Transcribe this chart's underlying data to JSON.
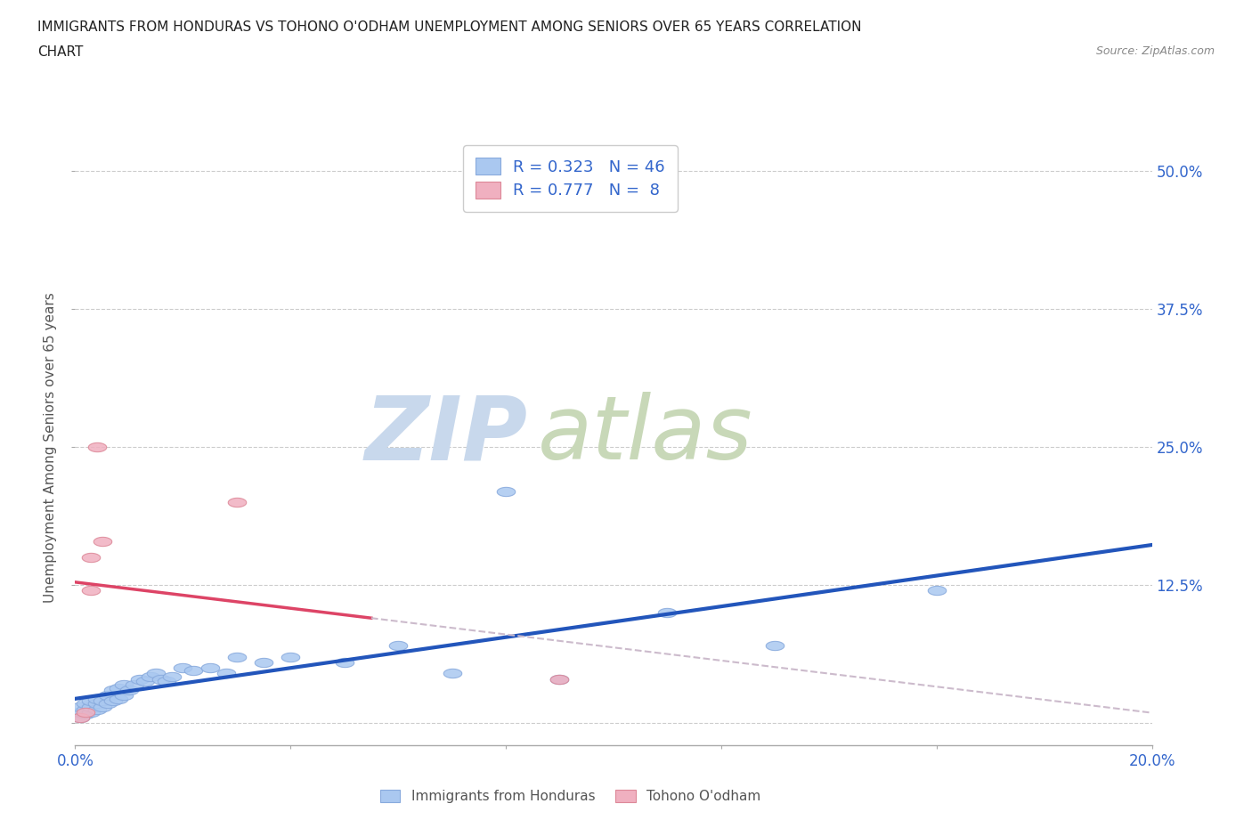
{
  "title_line1": "IMMIGRANTS FROM HONDURAS VS TOHONO O'ODHAM UNEMPLOYMENT AMONG SENIORS OVER 65 YEARS CORRELATION",
  "title_line2": "CHART",
  "source_text": "Source: ZipAtlas.com",
  "ylabel": "Unemployment Among Seniors over 65 years",
  "xmin": 0.0,
  "xmax": 0.2,
  "ymin": -0.02,
  "ymax": 0.52,
  "yticks": [
    0.0,
    0.125,
    0.25,
    0.375,
    0.5
  ],
  "ytick_labels": [
    "",
    "12.5%",
    "25.0%",
    "37.5%",
    "50.0%"
  ],
  "grid_color": "#cccccc",
  "background_color": "#ffffff",
  "watermark_text1": "ZIP",
  "watermark_text2": "atlas",
  "watermark_color1": "#c8d8ec",
  "watermark_color2": "#c8d8b8",
  "legend_R1": "R = 0.323",
  "legend_N1": "N = 46",
  "legend_R2": "R = 0.777",
  "legend_N2": "N =  8",
  "series1_color": "#aac8f0",
  "series1_edge_color": "#88aadd",
  "series2_color": "#f0b0c0",
  "series2_edge_color": "#dd8898",
  "trendline1_color": "#2255bb",
  "trendline2_color": "#dd4466",
  "trendline_dashed_color": "#ccbbcc",
  "legend_label1": "Immigrants from Honduras",
  "legend_label2": "Tohono O'odham",
  "title_color": "#222222",
  "axis_label_color": "#555555",
  "blue_text_color": "#3366cc",
  "series1_x": [
    0.001,
    0.001,
    0.001,
    0.002,
    0.002,
    0.002,
    0.003,
    0.003,
    0.003,
    0.004,
    0.004,
    0.004,
    0.005,
    0.005,
    0.006,
    0.006,
    0.007,
    0.007,
    0.008,
    0.008,
    0.009,
    0.009,
    0.01,
    0.011,
    0.012,
    0.013,
    0.014,
    0.015,
    0.016,
    0.017,
    0.018,
    0.02,
    0.022,
    0.025,
    0.028,
    0.03,
    0.035,
    0.04,
    0.05,
    0.06,
    0.07,
    0.08,
    0.09,
    0.11,
    0.13,
    0.16
  ],
  "series1_y": [
    0.005,
    0.01,
    0.015,
    0.008,
    0.012,
    0.018,
    0.01,
    0.015,
    0.02,
    0.012,
    0.018,
    0.022,
    0.015,
    0.02,
    0.018,
    0.025,
    0.02,
    0.03,
    0.022,
    0.032,
    0.025,
    0.035,
    0.03,
    0.035,
    0.04,
    0.038,
    0.042,
    0.045,
    0.04,
    0.038,
    0.042,
    0.05,
    0.048,
    0.05,
    0.045,
    0.06,
    0.055,
    0.06,
    0.055,
    0.07,
    0.045,
    0.21,
    0.04,
    0.1,
    0.07,
    0.12
  ],
  "series2_x": [
    0.001,
    0.002,
    0.003,
    0.003,
    0.004,
    0.005,
    0.03,
    0.09
  ],
  "series2_y": [
    0.005,
    0.01,
    0.15,
    0.12,
    0.25,
    0.165,
    0.2,
    0.04
  ],
  "trendline2_x_solid_end": 0.055,
  "trendline2_x_dashed_start": 0.055,
  "trendline2_x_dashed_end": 0.2
}
